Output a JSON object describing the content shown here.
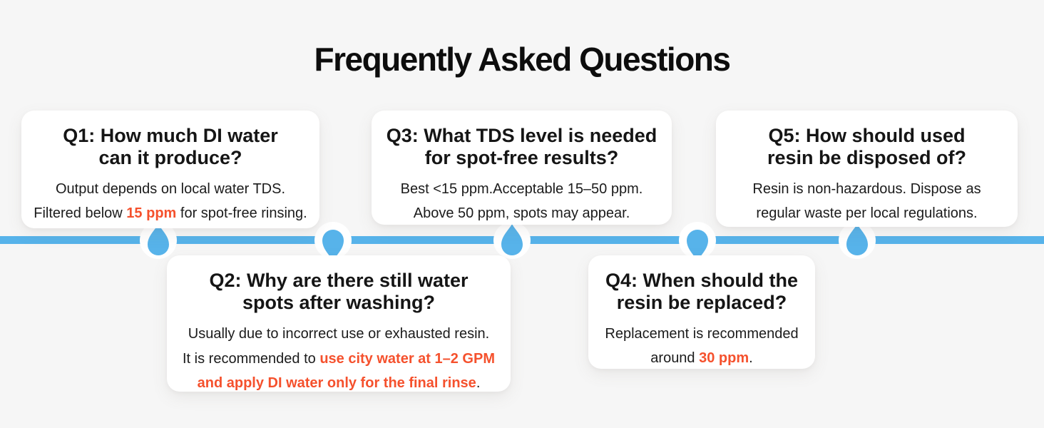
{
  "theme": {
    "page_bg": "#f6f6f6",
    "card_bg": "#ffffff",
    "text_color": "#161616",
    "accent_blue": "#57b3ea",
    "accent_orange": "#f5512d"
  },
  "header": {
    "title": "Frequently Asked Questions"
  },
  "timeline": {
    "connector_icon": "water-drop-icon",
    "connector_count": 5
  },
  "cards": [
    {
      "id": "Q1",
      "placement": "above",
      "question_lines": [
        "Q1: How much DI water",
        "can it produce?"
      ],
      "body_lines": [
        [
          {
            "text": "Output depends on local water TDS."
          }
        ],
        [
          {
            "text": "Filtered below "
          },
          {
            "text": "15 ppm",
            "highlight": true
          },
          {
            "text": " for spot-free rinsing."
          }
        ]
      ]
    },
    {
      "id": "Q2",
      "placement": "below",
      "question_lines": [
        "Q2: Why are there still water",
        "spots after washing?"
      ],
      "body_lines": [
        [
          {
            "text": "Usually due to incorrect use or exhausted resin."
          }
        ],
        [
          {
            "text": "It is recommended to "
          },
          {
            "text": "use city water at 1–2 GPM",
            "highlight": true
          }
        ],
        [
          {
            "text": "and apply DI water only for the final rinse",
            "highlight": true
          },
          {
            "text": "."
          }
        ]
      ]
    },
    {
      "id": "Q3",
      "placement": "above",
      "question_lines": [
        "Q3: What TDS level is needed",
        "for spot-free results?"
      ],
      "body_lines": [
        [
          {
            "text": "Best <15 ppm.Acceptable 15–50 ppm."
          }
        ],
        [
          {
            "text": "Above 50 ppm, spots may appear."
          }
        ]
      ]
    },
    {
      "id": "Q4",
      "placement": "below",
      "question_lines": [
        "Q4: When should the",
        "resin be replaced?"
      ],
      "body_lines": [
        [
          {
            "text": "Replacement is recommended"
          }
        ],
        [
          {
            "text": "around "
          },
          {
            "text": "30 ppm",
            "highlight": true
          },
          {
            "text": "."
          }
        ]
      ]
    },
    {
      "id": "Q5",
      "placement": "above",
      "question_lines": [
        "Q5: How should used",
        "resin be disposed of?"
      ],
      "body_lines": [
        [
          {
            "text": "Resin is non-hazardous. Dispose as"
          }
        ],
        [
          {
            "text": "regular waste per local regulations."
          }
        ]
      ]
    }
  ]
}
